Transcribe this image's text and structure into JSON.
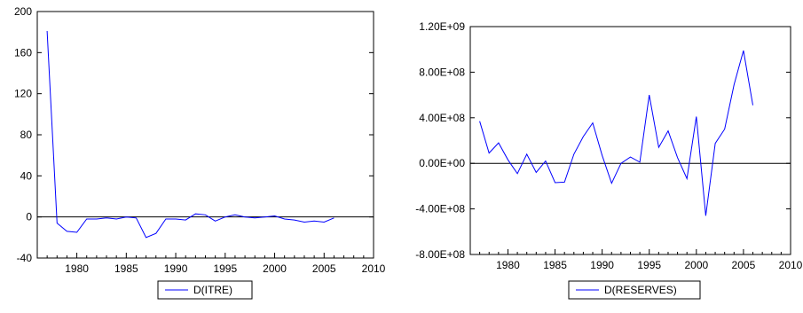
{
  "chart_data": [
    {
      "type": "line",
      "x": [
        1977,
        1978,
        1979,
        1980,
        1981,
        1982,
        1983,
        1984,
        1985,
        1986,
        1987,
        1988,
        1989,
        1990,
        1991,
        1992,
        1993,
        1994,
        1995,
        1996,
        1997,
        1998,
        1999,
        2000,
        2001,
        2002,
        2003,
        2004,
        2005,
        2006
      ],
      "series": [
        {
          "name": "D(ITRE)",
          "color": "#0000ff",
          "values": [
            181,
            -6,
            -14,
            -15,
            -2,
            -2,
            -1,
            -2,
            0,
            -1,
            -20,
            -16,
            -2,
            -2,
            -3,
            3,
            2,
            -4,
            0,
            2,
            0,
            -1,
            0,
            1,
            -2,
            -3,
            -5,
            -4,
            -5,
            -1
          ]
        }
      ],
      "xlim": [
        1976,
        2010
      ],
      "ylim": [
        -40,
        200
      ],
      "xticks": [
        "1980",
        "1985",
        "1990",
        "1995",
        "2000",
        "2005",
        "2010"
      ],
      "yticks": [
        "-40",
        "0",
        "40",
        "80",
        "120",
        "160",
        "200"
      ],
      "zero_line": true,
      "grid": false,
      "legend": "bottom-center"
    },
    {
      "type": "line",
      "x": [
        1977,
        1978,
        1979,
        1980,
        1981,
        1982,
        1983,
        1984,
        1985,
        1986,
        1987,
        1988,
        1989,
        1990,
        1991,
        1992,
        1993,
        1994,
        1995,
        1996,
        1997,
        1998,
        1999,
        2000,
        2001,
        2002,
        2003,
        2004,
        2005,
        2006
      ],
      "series": [
        {
          "name": "D(RESERVES)",
          "color": "#0000ff",
          "values": [
            370000000,
            90000000,
            180000000,
            30000000,
            -90000000,
            80000000,
            -80000000,
            20000000,
            -170000000,
            -165000000,
            80000000,
            235000000,
            355000000,
            70000000,
            -175000000,
            0,
            55000000,
            10000000,
            600000000,
            140000000,
            285000000,
            50000000,
            -135000000,
            410000000,
            -460000000,
            175000000,
            300000000,
            690000000,
            990000000,
            510000000
          ]
        }
      ],
      "xlim": [
        1976,
        2010
      ],
      "ylim": [
        -800000000,
        1200000000
      ],
      "xticks": [
        "1980",
        "1985",
        "1990",
        "1995",
        "2000",
        "2005",
        "2010"
      ],
      "yticks": [
        "-8.00E+08",
        "-4.00E+08",
        "0.00E+00",
        "4.00E+08",
        "8.00E+08",
        "1.20E+09"
      ],
      "zero_line": true,
      "grid": false,
      "legend": "bottom-center"
    }
  ]
}
